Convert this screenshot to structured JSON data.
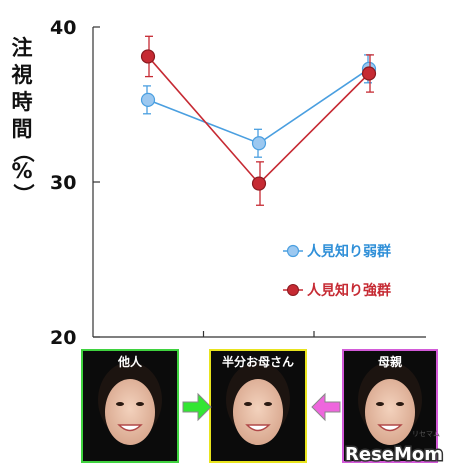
{
  "chart_data": {
    "type": "line",
    "title": "",
    "ylabel": "注視時間（%）",
    "ylim": [
      20,
      40
    ],
    "yticks": [
      "20",
      "30",
      "40"
    ],
    "categories": [
      "他人",
      "半分お母さん",
      "母親"
    ],
    "grid": false,
    "legend_position": "right",
    "series": [
      {
        "name": "人見知り弱群",
        "color": "#4a9fe0",
        "values": [
          35.3,
          32.5,
          37.3
        ],
        "error": [
          0.9,
          0.9,
          0.9
        ]
      },
      {
        "name": "人見知り強群",
        "color": "#c62a33",
        "values": [
          38.1,
          29.9,
          37.0
        ],
        "error": [
          1.3,
          1.4,
          1.2
        ]
      }
    ]
  },
  "faces": [
    {
      "label": "他人",
      "frame_color": "#3fd23f"
    },
    {
      "label": "半分お母さん",
      "frame_color": "#e8e41e"
    },
    {
      "label": "母親",
      "frame_color": "#d25ad8"
    }
  ],
  "arrows": [
    {
      "color": "#33e633",
      "direction": "right"
    },
    {
      "color": "#ee66dd",
      "direction": "left"
    }
  ],
  "watermark": {
    "text": "ReseMom",
    "sub": "リセマム"
  }
}
